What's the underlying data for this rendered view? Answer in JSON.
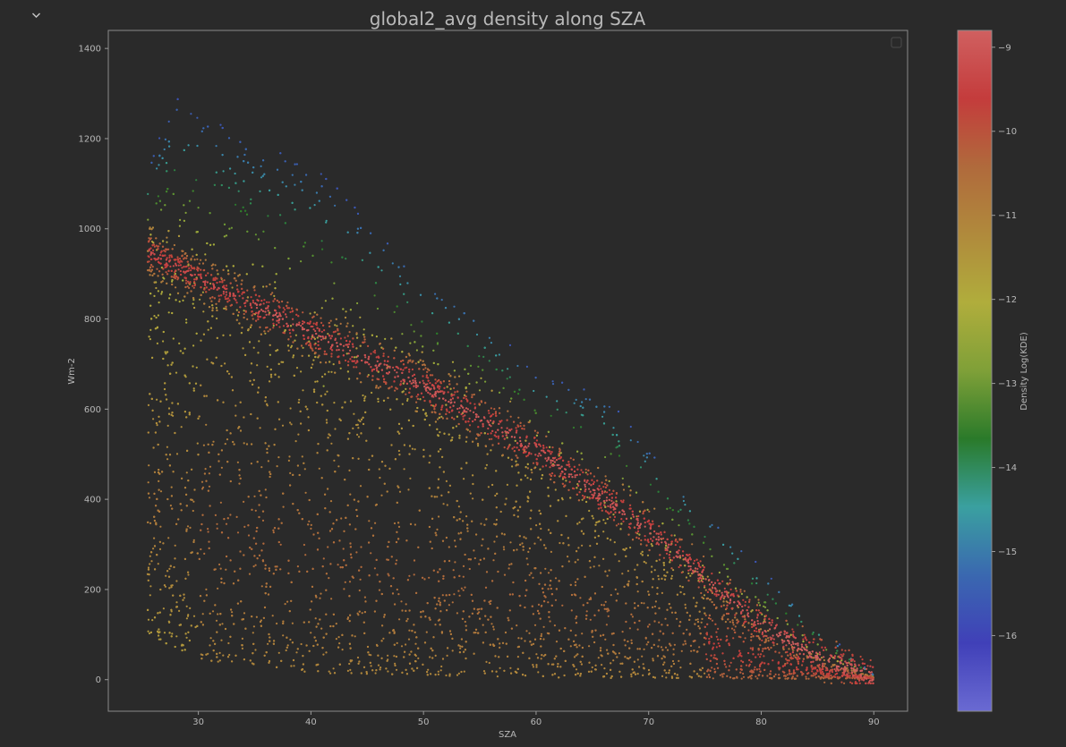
{
  "chart_data": {
    "type": "scatter",
    "title": "global2_avg density along SZA",
    "xlabel": "SZA",
    "ylabel": "Wm-2",
    "xlim": [
      22,
      93
    ],
    "ylim": [
      -70,
      1440
    ],
    "xticks": [
      30,
      40,
      50,
      60,
      70,
      80,
      90
    ],
    "yticks": [
      0,
      200,
      400,
      600,
      800,
      1000,
      1200,
      1400
    ],
    "grid": false,
    "legend": "top-right (empty)",
    "colorbar": {
      "label": "Density Log(KDE)",
      "range": [
        -16.9,
        -8.8
      ],
      "ticks": [
        -9,
        -10,
        -11,
        -12,
        -13,
        -14,
        -15,
        -16
      ],
      "tick_labels": [
        "−9",
        "−10",
        "−11",
        "−12",
        "−13",
        "−14",
        "−15",
        "−16"
      ],
      "colormap": [
        "#6a6ad2",
        "#4040b8",
        "#3a68b0",
        "#3aa0a0",
        "#2a7a2a",
        "#7fa038",
        "#b0ad3c",
        "#b08a3c",
        "#b06a3c",
        "#c43c3c",
        "#d06060"
      ]
    },
    "series": [
      {
        "values_description_free": true,
        "band_points": [
          [
            25.5,
            950
          ],
          [
            30,
            890
          ],
          [
            40,
            770
          ],
          [
            50,
            650
          ],
          [
            60,
            510
          ],
          [
            70,
            330
          ],
          [
            80,
            120
          ],
          [
            85,
            50
          ],
          [
            90,
            5
          ]
        ],
        "lower_envelope": [
          [
            25.5,
            100
          ],
          [
            30,
            45
          ],
          [
            40,
            15
          ],
          [
            50,
            8
          ],
          [
            60,
            5
          ],
          [
            70,
            3
          ],
          [
            80,
            2
          ],
          [
            90,
            2
          ]
        ],
        "upper_envelope": [
          [
            25.5,
            1140
          ],
          [
            28,
            1290
          ],
          [
            33,
            1220
          ],
          [
            40,
            1150
          ],
          [
            50,
            900
          ],
          [
            55,
            820
          ],
          [
            60,
            680
          ],
          [
            66,
            640
          ],
          [
            70,
            520
          ],
          [
            75,
            380
          ],
          [
            80,
            250
          ],
          [
            86,
            100
          ],
          [
            90,
            10
          ]
        ]
      }
    ]
  },
  "ui": {
    "toggle_icon": "chevron-down-icon"
  }
}
